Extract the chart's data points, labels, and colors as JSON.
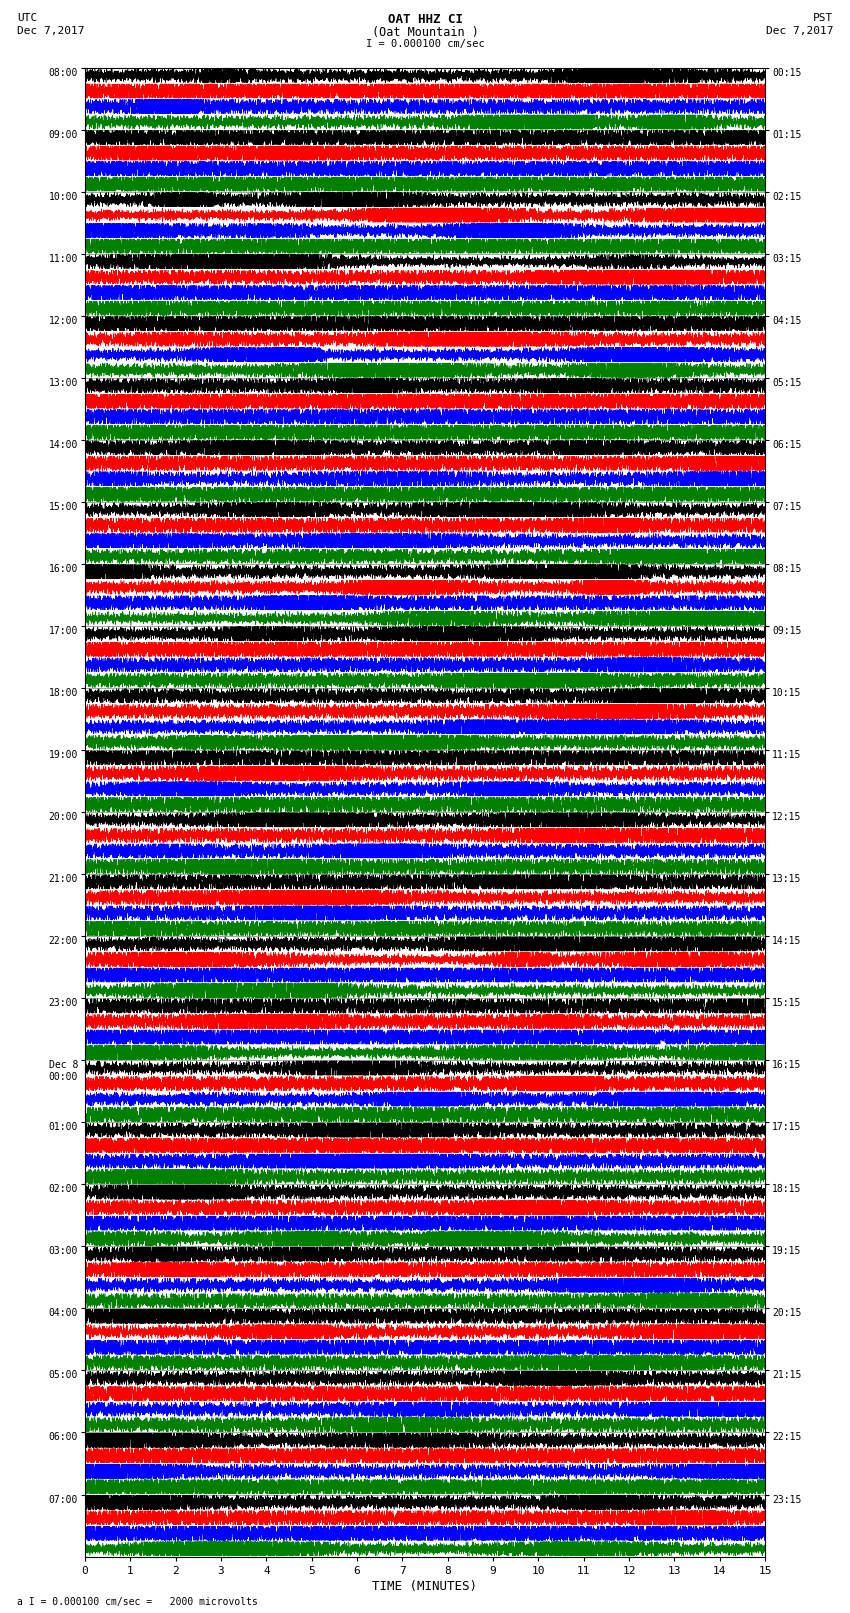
{
  "title_line1": "OAT HHZ CI",
  "title_line2": "(Oat Mountain )",
  "scale_label": "I = 0.000100 cm/sec",
  "bottom_label": "a I = 0.000100 cm/sec =   2000 microvolts",
  "utc_label": "UTC\nDec 7,2017",
  "pst_label": "PST\nDec 7,2017",
  "xlabel": "TIME (MINUTES)",
  "left_times": [
    "08:00",
    "09:00",
    "10:00",
    "11:00",
    "12:00",
    "13:00",
    "14:00",
    "15:00",
    "16:00",
    "17:00",
    "18:00",
    "19:00",
    "20:00",
    "21:00",
    "22:00",
    "23:00",
    "Dec 8\n00:00",
    "01:00",
    "02:00",
    "03:00",
    "04:00",
    "05:00",
    "06:00",
    "07:00"
  ],
  "right_times": [
    "00:15",
    "01:15",
    "02:15",
    "03:15",
    "04:15",
    "05:15",
    "06:15",
    "07:15",
    "08:15",
    "09:15",
    "10:15",
    "11:15",
    "12:15",
    "13:15",
    "14:15",
    "15:15",
    "16:15",
    "17:15",
    "18:15",
    "19:15",
    "20:15",
    "21:15",
    "22:15",
    "23:15"
  ],
  "n_rows": 24,
  "n_traces_per_row": 4,
  "colors": [
    "black",
    "red",
    "blue",
    "green"
  ],
  "xlim": [
    0,
    15
  ],
  "bg_color": "white",
  "figwidth": 8.5,
  "figheight": 16.13,
  "dpi": 100
}
